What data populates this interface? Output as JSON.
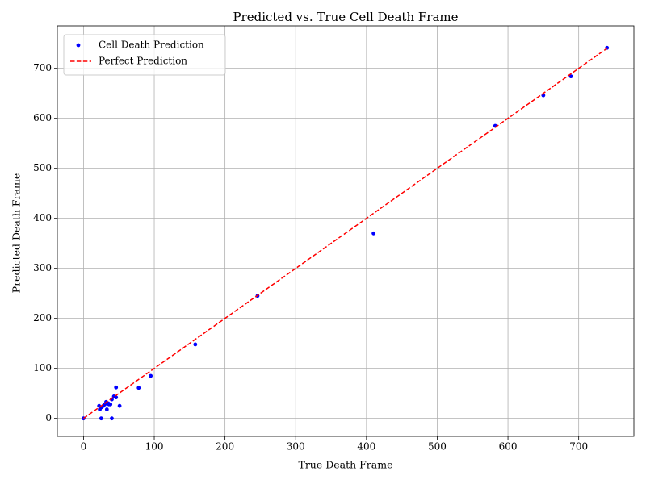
{
  "chart_data": {
    "type": "scatter",
    "title": "Predicted vs. True Cell Death Frame",
    "x_label": "True Death Frame",
    "y_label": "Predicted Death Frame",
    "xlim": [
      -37,
      778
    ],
    "ylim": [
      -36,
      785
    ],
    "xticks": [
      0,
      100,
      200,
      300,
      400,
      500,
      600,
      700
    ],
    "yticks": [
      0,
      100,
      200,
      300,
      400,
      500,
      600,
      700
    ],
    "grid": true,
    "legend": "upper left",
    "series": [
      {
        "name": "Cell Death Prediction",
        "type": "scatter",
        "color": "#0000ff",
        "x": [
          0,
          740,
          689,
          650,
          582,
          410,
          246,
          158,
          95,
          78,
          51,
          46,
          46,
          43,
          40,
          38,
          36,
          33,
          32,
          30,
          28,
          25,
          23,
          22,
          25,
          40,
          35
        ],
        "y": [
          0,
          741,
          684,
          646,
          585,
          370,
          245,
          148,
          85,
          61,
          25,
          62,
          42,
          44,
          38,
          28,
          28,
          18,
          33,
          28,
          25,
          22,
          18,
          25,
          0,
          0,
          30
        ]
      },
      {
        "name": "Perfect Prediction",
        "type": "line",
        "style": "dashed",
        "color": "#ff0000",
        "x": [
          0,
          740
        ],
        "y": [
          0,
          740
        ]
      }
    ]
  }
}
